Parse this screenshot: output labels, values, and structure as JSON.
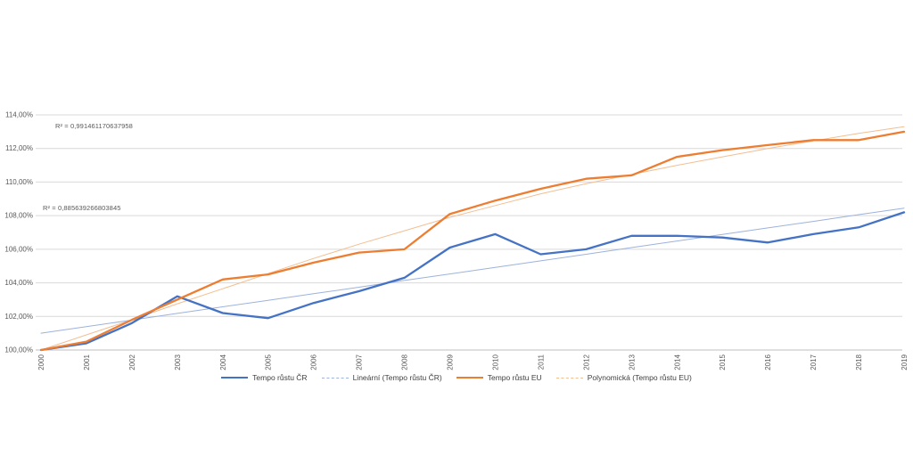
{
  "chart_data": {
    "type": "line",
    "title": "",
    "xlabel": "",
    "ylabel": "",
    "x_categories": [
      "2000",
      "2001",
      "2002",
      "2003",
      "2004",
      "2005",
      "2006",
      "2007",
      "2008",
      "2009",
      "2010",
      "2011",
      "2012",
      "2013",
      "2014",
      "2015",
      "2016",
      "2017",
      "2018",
      "2019"
    ],
    "y_axis": {
      "min": 100,
      "max": 114,
      "tick_step": 2,
      "tick_labels": [
        "100,00%",
        "102,00%",
        "104,00%",
        "106,00%",
        "108,00%",
        "110,00%",
        "112,00%",
        "114,00%"
      ],
      "tick_values": [
        100,
        102,
        104,
        106,
        108,
        110,
        112,
        114
      ]
    },
    "grid": true,
    "legend_position": "bottom",
    "series": [
      {
        "name": "Tempo růstu ČR",
        "color": "#4472C4",
        "width": 2.3,
        "dash": "solid",
        "values": [
          100.0,
          100.4,
          101.6,
          103.2,
          102.2,
          101.9,
          102.8,
          103.5,
          104.3,
          106.1,
          106.9,
          105.7,
          106.0,
          106.8,
          106.8,
          106.7,
          106.4,
          106.9,
          107.3,
          108.2
        ]
      },
      {
        "name": "Lineární (Tempo růstu ČR)",
        "color": "#9DB2DE",
        "width": 1,
        "dash": "trend",
        "values": [
          101.0,
          101.39,
          101.78,
          102.18,
          102.57,
          102.96,
          103.35,
          103.74,
          104.14,
          104.53,
          104.92,
          105.31,
          105.7,
          106.1,
          106.49,
          106.88,
          107.27,
          107.66,
          108.06,
          108.45
        ]
      },
      {
        "name": "Tempo růstu EU",
        "color": "#ED7D31",
        "width": 2.3,
        "dash": "solid",
        "values": [
          100.0,
          100.5,
          101.8,
          103.0,
          104.2,
          104.5,
          105.2,
          105.8,
          106.0,
          108.1,
          108.9,
          109.6,
          110.2,
          110.4,
          111.5,
          111.9,
          112.2,
          112.5,
          112.5,
          113.0
        ]
      },
      {
        "name": "Polynomická (Tempo růstu EU)",
        "color": "#F3BE91",
        "width": 1,
        "dash": "trend",
        "values": [
          100.0,
          100.9,
          101.8,
          102.75,
          103.65,
          104.55,
          105.45,
          106.3,
          107.1,
          107.9,
          108.6,
          109.3,
          109.9,
          110.45,
          111.0,
          111.5,
          112.0,
          112.45,
          112.9,
          113.3
        ]
      }
    ],
    "legend": [
      {
        "label": "Tempo růstu ČR",
        "color": "#4472C4",
        "swatch": "solid"
      },
      {
        "label": "Lineární (Tempo růstu ČR)",
        "color": "#9DB2DE",
        "swatch": "dashed"
      },
      {
        "label": "Tempo růstu EU",
        "color": "#ED7D31",
        "swatch": "solid"
      },
      {
        "label": "Polynomická (Tempo růstu EU)",
        "color": "#F3BE91",
        "swatch": "dashed"
      }
    ],
    "annotations": [
      {
        "text": "R² = 0,991461170637958",
        "x": 62,
        "y": 137,
        "series": "Polynomická (Tempo růstu EU)"
      },
      {
        "text": "R² = 0,885639266803845",
        "x": 48,
        "y": 229,
        "series": "Lineární (Tempo růstu ČR)"
      }
    ],
    "colors": {
      "gridline": "#D9D9D9",
      "axis_line": "#BFBFBF",
      "axis_text": "#595959",
      "background": "#FFFFFF"
    }
  }
}
